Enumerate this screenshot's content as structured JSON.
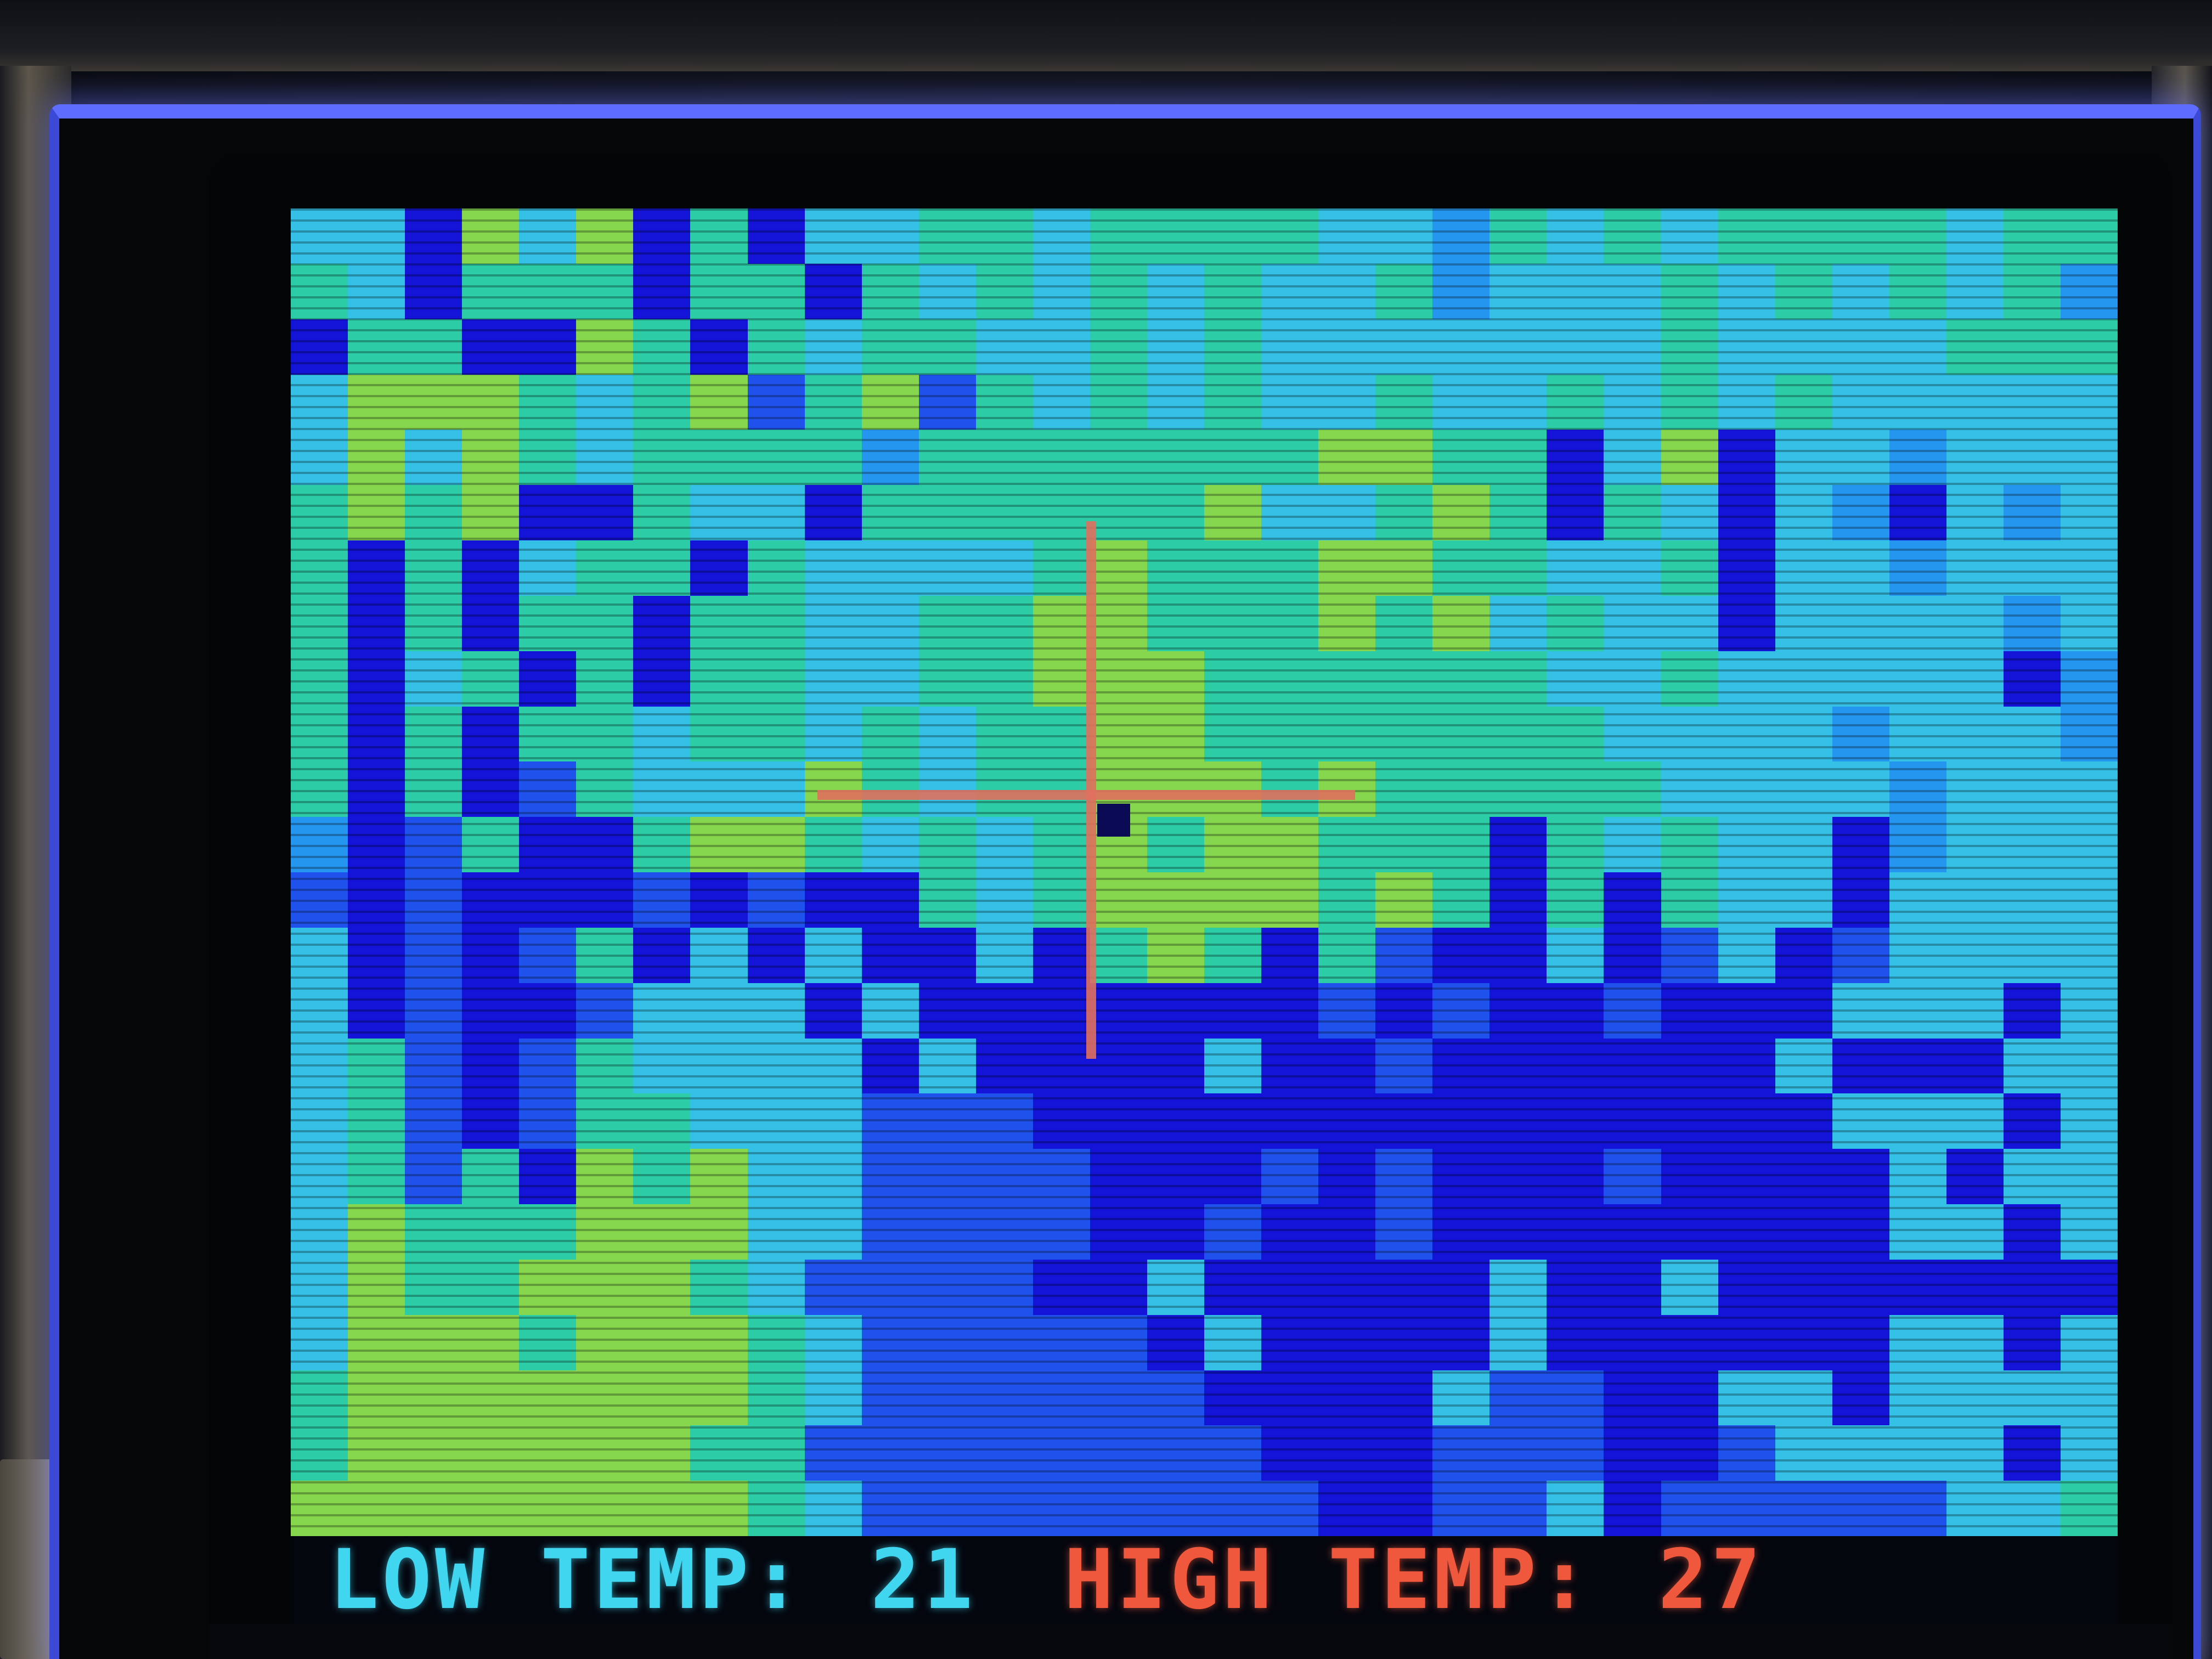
{
  "status": {
    "low_label": "LOW TEMP:",
    "low_value": "21",
    "high_label": "HIGH TEMP:",
    "high_value": "27"
  },
  "colors": {
    "palette": [
      "#1414d8",
      "#1f52ec",
      "#2596f0",
      "#35c0e6",
      "#2ccca6",
      "#86d64e"
    ],
    "low_text": "#40d6f0",
    "high_text": "#f0583e",
    "crosshair": "#e0705e"
  },
  "thermal_grid": {
    "cols": 32,
    "rows": 24,
    "cells": [
      "33053504033443444433243434444344",
      "43044404404343434334233343434342",
      "04400540434433434333333343333444",
      "35554345145143434334334343433333",
      "35354344442444444455440350332333",
      "45450043304444445334540430320323",
      "40403440433334544455443340332333",
      "40404404433445544454534330333323",
      "40340404433445554444443343333302",
      "40404434434344554444444333323332",
      "40401433354344555454444433332333",
      "20140045543434545544404343302333",
      "10100010100434555545404043303333",
      "30101403030030454041003013013333",
      "30100133303000000010100100033303",
      "34101433330300003001000000300033",
      "34101443331110000000000000033303",
      "34140545331111000101000100003033",
      "35444555331111001001000000003303",
      "35445554311110030000030030000000",
      "35554555431111103000030000003303",
      "45555555431111110000311003303333",
      "45555554411111111000111001333303",
      "55555555431111111100113011111334"
    ]
  }
}
